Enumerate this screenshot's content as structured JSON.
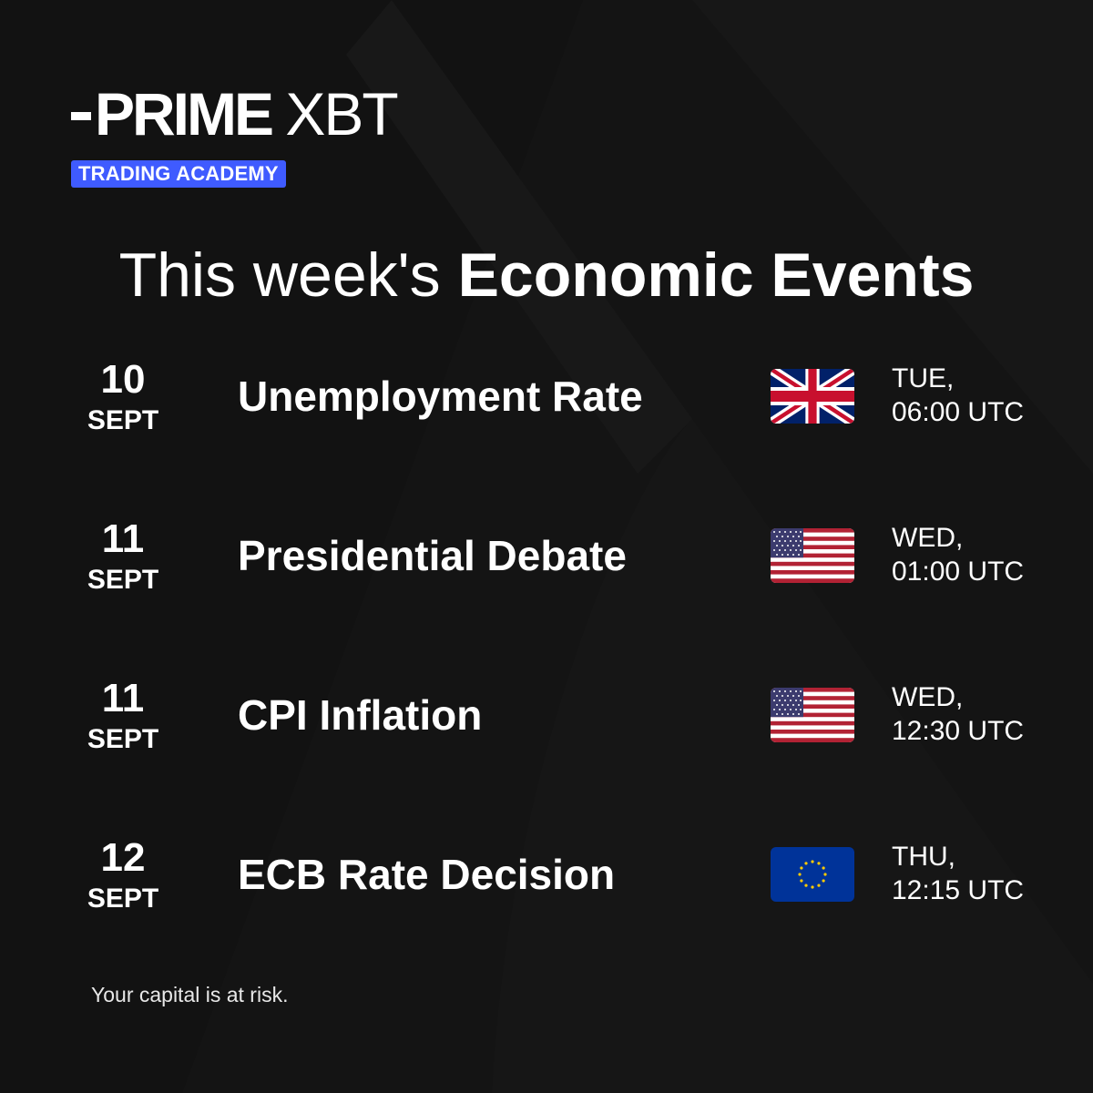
{
  "brand": {
    "logo_text_primary": "PRIME",
    "logo_text_secondary": "XBT",
    "badge": "TRADING ACADEMY",
    "badge_color": "#3f5bff"
  },
  "headline": {
    "regular": "This week's",
    "bold": "Economic Events"
  },
  "events": [
    {
      "day": "10",
      "month": "SEPT",
      "name": "Unemployment Rate",
      "flag": "uk-flag-icon",
      "time_line1": "TUE,",
      "time_line2": "06:00 UTC"
    },
    {
      "day": "11",
      "month": "SEPT",
      "name": "Presidential Debate",
      "flag": "us-flag-icon",
      "time_line1": "WED,",
      "time_line2": "01:00 UTC"
    },
    {
      "day": "11",
      "month": "SEPT",
      "name": "CPI Inflation",
      "flag": "us-flag-icon",
      "time_line1": "WED,",
      "time_line2": "12:30 UTC"
    },
    {
      "day": "12",
      "month": "SEPT",
      "name": "ECB Rate Decision",
      "flag": "eu-flag-icon",
      "time_line1": "THU,",
      "time_line2": "12:15 UTC"
    }
  ],
  "disclaimer": "Your capital is at risk.",
  "colors": {
    "background": "#141414",
    "text": "#ffffff"
  }
}
